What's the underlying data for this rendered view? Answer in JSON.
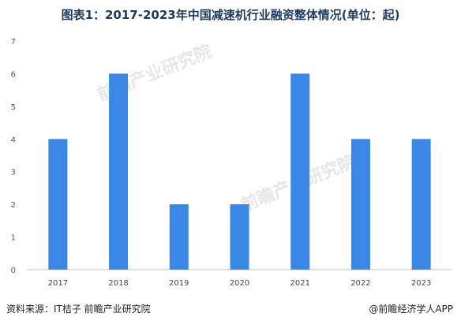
{
  "title": "图表1：2017-2023年中国减速机行业融资整体情况(单位：起)",
  "source": "资料来源：IT桔子 前瞻产业研究院",
  "credit": "@前瞻经济学人APP",
  "watermark": "前瞻产业研究院",
  "chart_data": {
    "type": "bar",
    "categories": [
      "2017",
      "2018",
      "2019",
      "2020",
      "2021",
      "2022",
      "2023"
    ],
    "values": [
      4,
      6,
      2,
      2,
      6,
      4,
      4
    ],
    "ylim": [
      0,
      7
    ],
    "yticks": [
      0,
      1,
      2,
      3,
      4,
      5,
      6,
      7
    ],
    "grid": false,
    "bar_color": "#3a87e6"
  }
}
